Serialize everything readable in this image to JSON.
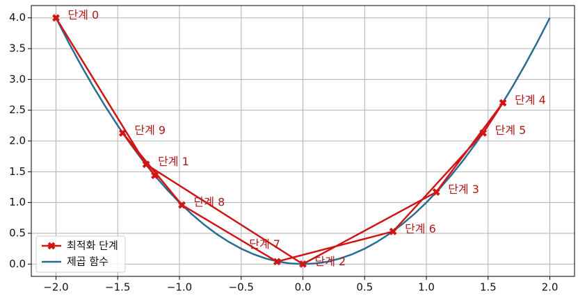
{
  "chart_data": {
    "type": "line",
    "xlim": [
      -2.2,
      2.2
    ],
    "ylim": [
      -0.2,
      4.2
    ],
    "xticks": [
      {
        "value": -2,
        "label": "−2.0"
      },
      {
        "value": -1.5,
        "label": "−1.5"
      },
      {
        "value": -1,
        "label": "−1.0"
      },
      {
        "value": -0.5,
        "label": "−0.5"
      },
      {
        "value": 0,
        "label": "0.0"
      },
      {
        "value": 0.5,
        "label": "0.5"
      },
      {
        "value": 1,
        "label": "1.0"
      },
      {
        "value": 1.5,
        "label": "1.5"
      },
      {
        "value": 2,
        "label": "2.0"
      }
    ],
    "yticks": [
      {
        "value": 0,
        "label": "0.0"
      },
      {
        "value": 0.5,
        "label": "0.5"
      },
      {
        "value": 1,
        "label": "1.0"
      },
      {
        "value": 1.5,
        "label": "1.5"
      },
      {
        "value": 2,
        "label": "2.0"
      },
      {
        "value": 2.5,
        "label": "2.5"
      },
      {
        "value": 3,
        "label": "3.0"
      },
      {
        "value": 3.5,
        "label": "3.5"
      },
      {
        "value": 4,
        "label": "4.0"
      }
    ],
    "grid": true,
    "legend": "lower left",
    "series": [
      {
        "name": "최적화 단계",
        "color": "#d01515",
        "marker": "X",
        "x": [
          -2.0,
          -1.27,
          0.0,
          1.08,
          1.62,
          1.46,
          0.73,
          -0.21,
          -0.98,
          -1.46,
          -1.2
        ],
        "values": [
          4.0,
          1.62,
          0.0,
          1.17,
          2.62,
          2.13,
          0.53,
          0.04,
          0.96,
          2.13,
          1.44
        ],
        "labels": [
          "단계 0",
          "단계 1",
          "단계 2",
          "단계 3",
          "단계 4",
          "단계 5",
          "단계 6",
          "단계 7",
          "단계 8",
          "단계 9",
          null
        ]
      },
      {
        "name": "제곱 함수",
        "color": "#2a6b91",
        "x": [
          -2.0,
          -1.9,
          -1.8,
          -1.7,
          -1.6,
          -1.5,
          -1.4,
          -1.3,
          -1.2,
          -1.1,
          -1.0,
          -0.9,
          -0.8,
          -0.7,
          -0.6,
          -0.5,
          -0.4,
          -0.3,
          -0.2,
          -0.1,
          0.0,
          0.1,
          0.2,
          0.3,
          0.4,
          0.5,
          0.6,
          0.7,
          0.8,
          0.9,
          1.0,
          1.1,
          1.2,
          1.3,
          1.4,
          1.5,
          1.6,
          1.7,
          1.8,
          1.9,
          2.0
        ],
        "values": [
          4.0,
          3.61,
          3.24,
          2.89,
          2.56,
          2.25,
          1.96,
          1.69,
          1.44,
          1.21,
          1.0,
          0.81,
          0.64,
          0.49,
          0.36,
          0.25,
          0.16,
          0.09,
          0.04,
          0.01,
          0.0,
          0.01,
          0.04,
          0.09,
          0.16,
          0.25,
          0.36,
          0.49,
          0.64,
          0.81,
          1.0,
          1.21,
          1.44,
          1.69,
          1.96,
          2.25,
          2.56,
          2.89,
          3.24,
          3.61,
          4.0
        ]
      }
    ]
  }
}
